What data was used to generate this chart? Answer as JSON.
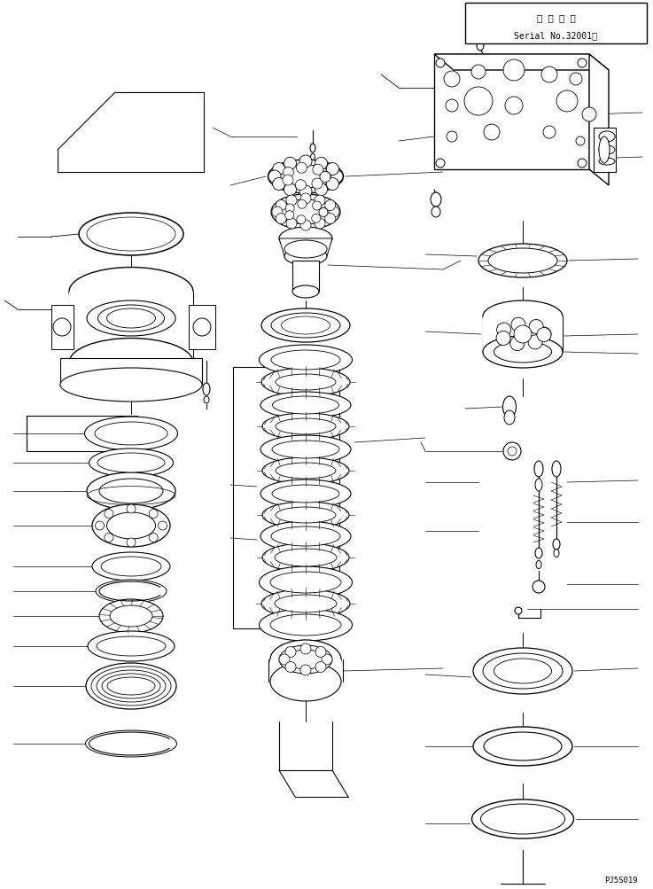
{
  "title_box_text1": "適 用 号 機",
  "title_box_text2": "Serial No.32001～",
  "part_number": "PJ5S019",
  "bg_color": "#ffffff",
  "line_color": "#000000",
  "figsize": [
    7.37,
    10.04
  ],
  "dpi": 100
}
